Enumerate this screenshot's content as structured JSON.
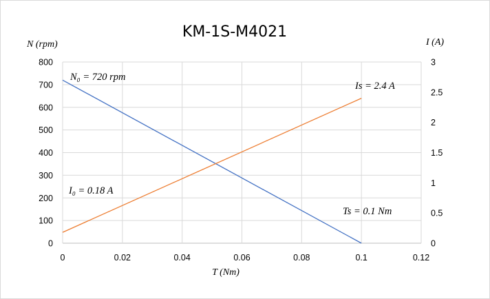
{
  "chart_data": {
    "type": "line",
    "title": "KM-1S-M4021",
    "xlabel": "T (Nm)",
    "ylabel_left": "N (rpm)",
    "ylabel_right": "I (A)",
    "xlim": [
      0,
      0.12
    ],
    "ylim_left": [
      0,
      800
    ],
    "ylim_right": [
      0,
      3
    ],
    "x_ticks": [
      "0",
      "0.02",
      "0.04",
      "0.06",
      "0.08",
      "0.1",
      "0.12"
    ],
    "y_left_ticks": [
      "0",
      "100",
      "200",
      "300",
      "400",
      "500",
      "600",
      "700",
      "800"
    ],
    "y_right_ticks": [
      "0",
      "0.5",
      "1",
      "1.5",
      "2",
      "2.5",
      "3"
    ],
    "grid": true,
    "series": [
      {
        "axis": "left",
        "color": "#4472c4",
        "x": [
          0,
          0.1
        ],
        "y": [
          720,
          0
        ]
      },
      {
        "axis": "right",
        "color": "#ed7d31",
        "x": [
          0,
          0.1
        ],
        "y": [
          0.18,
          2.4
        ]
      }
    ],
    "annotations": {
      "n0": "N₀ = 720 rpm",
      "is": "Is = 2.4 A",
      "i0": "I₀ = 0.18 A",
      "ts": "Ts = 0.1 Nm"
    }
  }
}
